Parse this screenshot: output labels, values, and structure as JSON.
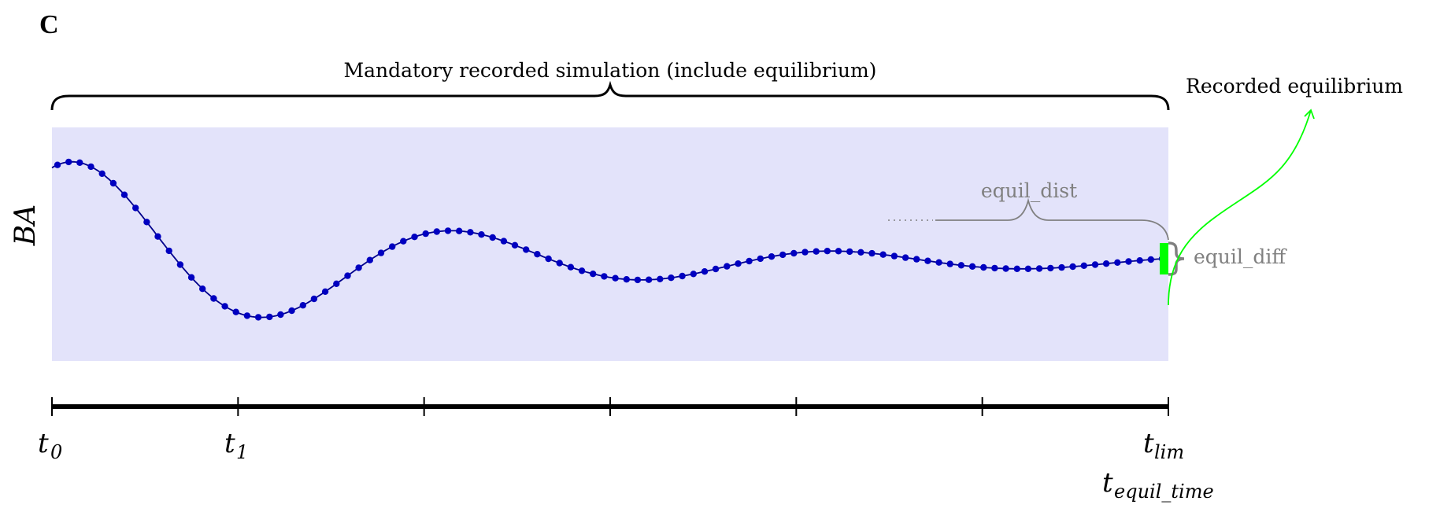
{
  "panel_letter": "C",
  "labels": {
    "mandatory": "Mandatory recorded simulation (include equilibrium)",
    "recorded_equilibrium": "Recorded equilibrium",
    "equil_dist": "equil_dist",
    "equil_diff": "equil_diff",
    "y_axis_base": "BA"
  },
  "time_axis": {
    "ticks_total": 7,
    "labels": [
      {
        "base": "t",
        "sub": "0",
        "tick": 0
      },
      {
        "base": "t",
        "sub": "1",
        "tick": 1
      },
      {
        "base": "t",
        "sub": "lim",
        "tick": 6
      }
    ],
    "extra_label": {
      "base": "t",
      "sub": "equil_time",
      "tick": 6
    }
  },
  "curve": {
    "description_values": "damped oscillation converging to equilibrium",
    "points": 100
  },
  "colors": {
    "background_region": "#e3e3fa",
    "curve": "#00008b",
    "dots": "#0000c0",
    "equilibrium_marker": "#00ff00",
    "annotation_gray": "#808080",
    "arrow_green": "#00ff00"
  }
}
